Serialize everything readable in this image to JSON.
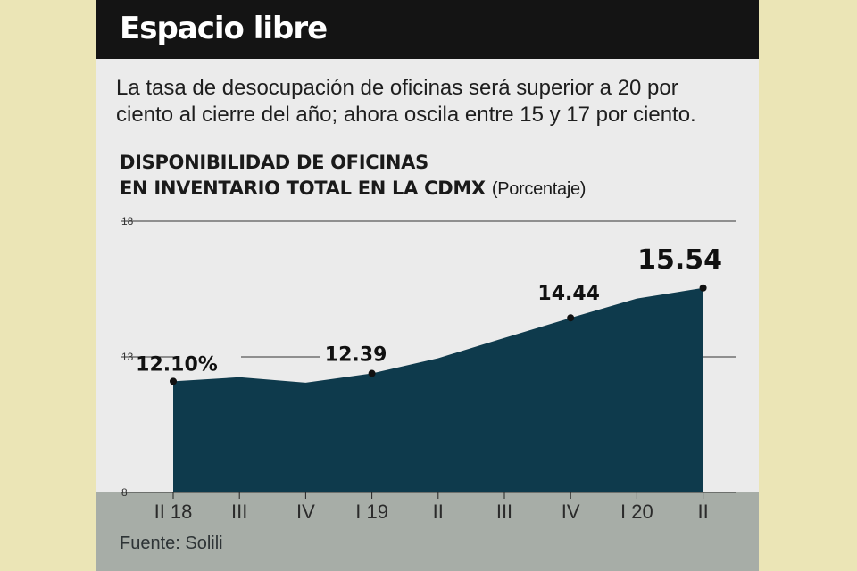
{
  "header": {
    "title": "Espacio libre"
  },
  "lead": "La tasa de desocupación de oficinas será superior a 20 por ciento al cierre del año;  ahora oscila entre 15 y 17 por ciento.",
  "chart_title_lines": [
    "DISPONIBILIDAD DE OFICINAS",
    "EN INVENTARIO TOTAL EN LA CDMX"
  ],
  "chart_unit": "(Porcentaje)",
  "source": "Fuente: Solili",
  "colors": {
    "area": "#0e3a4c",
    "title_bar": "#141414",
    "footer_band": "#a7ada7",
    "background": "#ebebeb"
  },
  "chart_data": {
    "type": "area",
    "categories": [
      "II 18",
      "III",
      "IV",
      "I 19",
      "II",
      "III",
      "IV",
      "I 20",
      "II"
    ],
    "values": [
      12.1,
      12.25,
      12.05,
      12.39,
      12.95,
      13.7,
      14.44,
      15.15,
      15.54
    ],
    "ylim": [
      8,
      18
    ],
    "yticks": [
      "8",
      "13",
      "18"
    ],
    "grid": true,
    "data_labels": [
      {
        "index": 0,
        "text": "12.10%"
      },
      {
        "index": 3,
        "text": "12.39"
      },
      {
        "index": 6,
        "text": "14.44"
      },
      {
        "index": 8,
        "text": "15.54"
      }
    ]
  }
}
